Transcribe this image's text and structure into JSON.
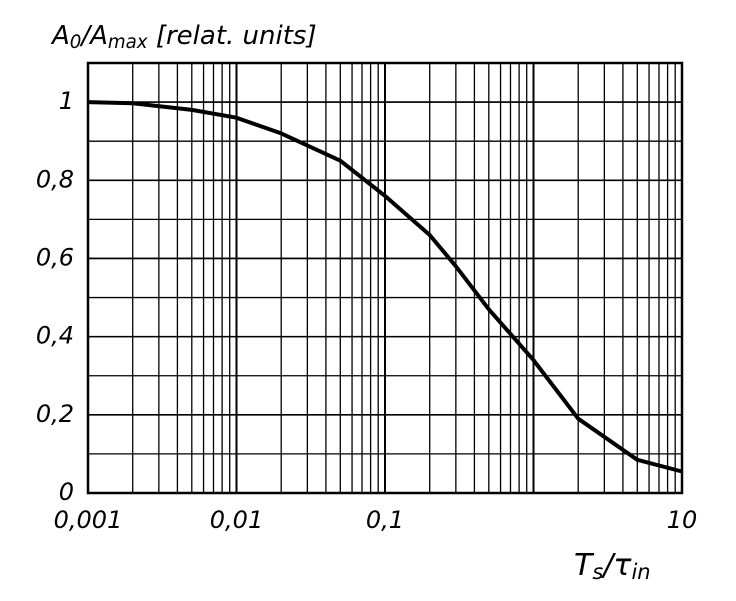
{
  "chart_data": {
    "type": "line",
    "ylabel_parts": [
      "A",
      "0",
      "/A",
      "max",
      " [relat. units]"
    ],
    "xlabel_parts": [
      "T",
      "s",
      "/τ",
      "in"
    ],
    "x": [
      0.001,
      0.002,
      0.005,
      0.01,
      0.02,
      0.05,
      0.1,
      0.2,
      0.3,
      0.5,
      1,
      2,
      5,
      10
    ],
    "series": [
      {
        "color": "#000000",
        "values": [
          1.0,
          0.997,
          0.98,
          0.96,
          0.92,
          0.85,
          0.76,
          0.66,
          0.58,
          0.47,
          0.34,
          0.19,
          0.085,
          0.055
        ]
      }
    ],
    "xlim": [
      0.001,
      10
    ],
    "ylim": [
      0,
      1.1
    ],
    "xscale": "log",
    "xticks": [
      {
        "value": 0.001,
        "label": "0,001"
      },
      {
        "value": 0.01,
        "label": "0,01"
      },
      {
        "value": 0.1,
        "label": "0,1"
      },
      10
    ],
    "yticks": [
      0,
      {
        "value": 0.2,
        "label": "0,2"
      },
      {
        "value": 0.4,
        "label": "0,4"
      },
      {
        "value": 0.6,
        "label": "0,6"
      },
      {
        "value": 0.8,
        "label": "0,8"
      },
      1
    ],
    "grid": true,
    "minor_grid": true
  }
}
